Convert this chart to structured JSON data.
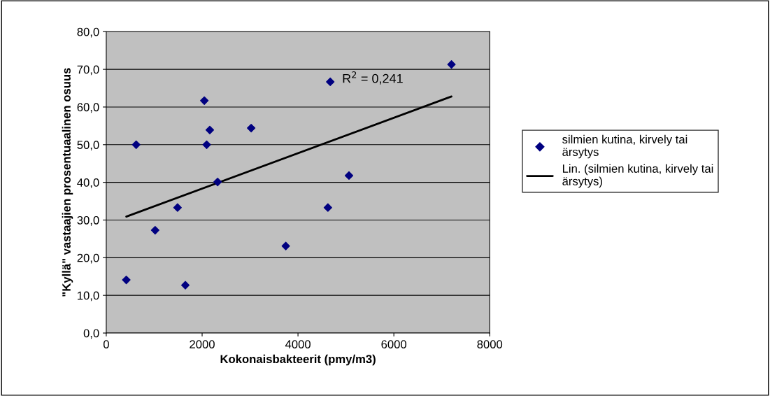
{
  "chart_data": {
    "type": "scatter",
    "xlabel": "Kokonaisbakteerit (pmy/m3)",
    "ylabel": "\"Kyllä\" vastaajien prosentuaalinen osuus",
    "annotations": [
      "R$^{2}$ = 0,241"
    ],
    "series": [
      {
        "name": "silmien kutina, kirvely tai ärsytys",
        "color": "#000080",
        "marker": "diamond",
        "x": [
          418,
          624,
          1020,
          1487,
          1650,
          2046,
          2095,
          2160,
          2323,
          3023,
          3745,
          4624,
          4673,
          5064,
          7202
        ],
        "values": [
          14.1,
          50.0,
          27.3,
          33.3,
          12.7,
          61.7,
          50.0,
          53.9,
          40.1,
          54.4,
          23.1,
          33.3,
          66.7,
          41.8,
          71.3
        ]
      },
      {
        "name": "Lin. (silmien kutina, kirvely tai ärsytys)",
        "type": "line",
        "color": "#000000",
        "marker": "none",
        "line_style": "solid",
        "x": [
          418,
          7202
        ],
        "values": [
          30.9,
          62.8
        ]
      }
    ],
    "xlim": [
      0,
      8000
    ],
    "xticks": [
      0,
      2000,
      4000,
      6000,
      8000
    ],
    "ylim": [
      0,
      80
    ],
    "yticks": [
      {
        "value": 0,
        "label": "0,0"
      },
      {
        "value": 10,
        "label": "10,0"
      },
      {
        "value": 20,
        "label": "20,0"
      },
      {
        "value": 30,
        "label": "30,0"
      },
      {
        "value": 40,
        "label": "40,0"
      },
      {
        "value": 50,
        "label": "50,0"
      },
      {
        "value": 60,
        "label": "60,0"
      },
      {
        "value": 70,
        "label": "70,0"
      },
      {
        "value": 80,
        "label": "80,0"
      }
    ],
    "grid": "y",
    "legend": "right"
  }
}
